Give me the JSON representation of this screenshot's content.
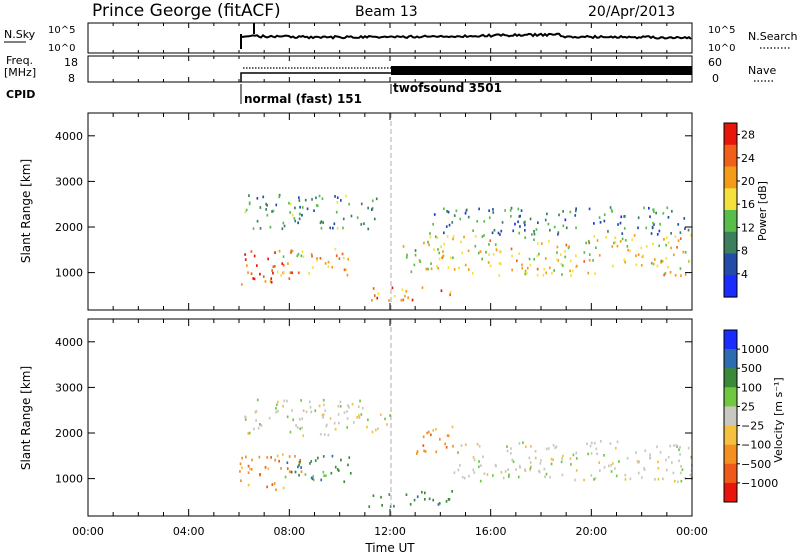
{
  "header": {
    "station": "Prince George (fitACF)",
    "beam": "Beam 13",
    "date": "20/Apr/2013"
  },
  "top_panels": {
    "nsky_label": "N.Sky",
    "nsky_ticks": [
      "10^5",
      "10^0"
    ],
    "nsearch_ticks": [
      "10^5",
      "10^0"
    ],
    "nsearch_label": "N.Search",
    "freq_label": "Freq.",
    "freq_unit": "[MHz]",
    "freq_ticks": [
      "18",
      "8"
    ],
    "nave_ticks": [
      "60",
      "0"
    ],
    "nave_label": "Nave",
    "cpid_label": "CPID",
    "cpid_modes": [
      {
        "label": "normal (fast) 151",
        "start_hour": 6.0
      },
      {
        "label": "twofsound 3501",
        "start_hour": 12.0
      }
    ]
  },
  "colors": {
    "power_scale": [
      "#1a2cff",
      "#234ca8",
      "#3b7f5c",
      "#59bd4b",
      "#f4e13c",
      "#f29c1a",
      "#f06018",
      "#e8150c"
    ],
    "velocity_scale": [
      "#1a2cff",
      "#2d6cb0",
      "#3a8a3a",
      "#70c740",
      "#c8c8c0",
      "#f5c040",
      "#f39020",
      "#ef5a18",
      "#e8150c"
    ]
  },
  "chart_data": [
    {
      "type": "heatmap",
      "panel": "power",
      "xlabel": "",
      "ylabel": "Slant Range [km]",
      "x_range_hours": [
        0,
        24
      ],
      "x_ticks": [
        "00:00",
        "04:00",
        "08:00",
        "12:00",
        "16:00",
        "20:00",
        "00:00"
      ],
      "ylim": [
        180,
        4500
      ],
      "y_ticks": [
        1000,
        2000,
        3000,
        4000
      ],
      "colorbar_label": "Power [dB]",
      "colorbar_ticks": [
        4,
        8,
        12,
        16,
        20,
        24,
        28
      ],
      "colorbar_range": [
        0,
        30
      ],
      "echo_regions": [
        {
          "t0": 6.0,
          "t1": 8.2,
          "r0": 700,
          "r1": 1500,
          "value": 28
        },
        {
          "t0": 7.5,
          "t1": 10.5,
          "r0": 900,
          "r1": 1500,
          "value": 20
        },
        {
          "t0": 6.2,
          "t1": 11.5,
          "r0": 1900,
          "r1": 2700,
          "value": 10
        },
        {
          "t0": 11.0,
          "t1": 14.5,
          "r0": 350,
          "r1": 650,
          "value": 24
        },
        {
          "t0": 12.5,
          "t1": 14.0,
          "r0": 900,
          "r1": 1800,
          "value": 16
        },
        {
          "t0": 14.0,
          "t1": 24.0,
          "r0": 900,
          "r1": 1800,
          "value": 18
        },
        {
          "t0": 13.5,
          "t1": 24.0,
          "r0": 1800,
          "r1": 2400,
          "value": 8
        }
      ]
    },
    {
      "type": "heatmap",
      "panel": "velocity",
      "xlabel": "Time UT",
      "ylabel": "Slant Range [km]",
      "x_range_hours": [
        0,
        24
      ],
      "x_ticks": [
        "00:00",
        "04:00",
        "08:00",
        "12:00",
        "16:00",
        "20:00",
        "00:00"
      ],
      "ylim": [
        180,
        4500
      ],
      "y_ticks": [
        1000,
        2000,
        3000,
        4000
      ],
      "colorbar_label": "Velocity [m s⁻¹]",
      "colorbar_ticks": [
        "1000",
        "500",
        "100",
        "25",
        "−25",
        "−100",
        "−500",
        "−1000"
      ],
      "echo_regions": [
        {
          "t0": 6.0,
          "t1": 8.5,
          "r0": 700,
          "r1": 1500,
          "value": -100
        },
        {
          "t0": 7.5,
          "t1": 10.5,
          "r0": 900,
          "r1": 1500,
          "value": 100
        },
        {
          "t0": 6.2,
          "t1": 12.0,
          "r0": 1900,
          "r1": 2700,
          "value": 0
        },
        {
          "t0": 11.0,
          "t1": 14.5,
          "r0": 350,
          "r1": 700,
          "value": 100
        },
        {
          "t0": 13.0,
          "t1": 14.5,
          "r0": 1500,
          "r1": 2200,
          "value": -100
        },
        {
          "t0": 14.5,
          "t1": 24.0,
          "r0": 900,
          "r1": 1800,
          "value": 0
        }
      ]
    }
  ]
}
